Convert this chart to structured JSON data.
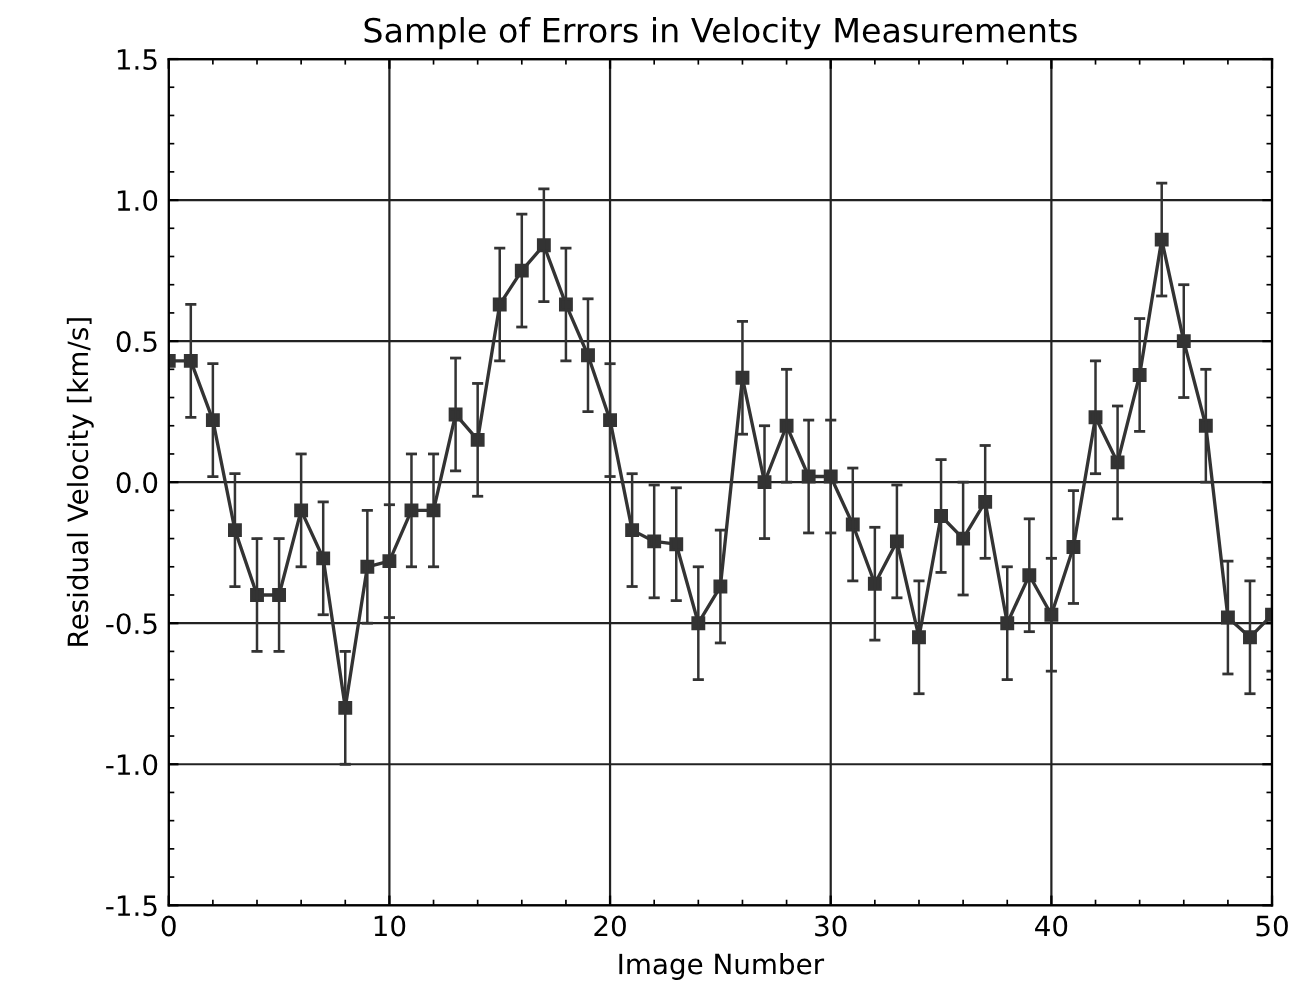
{
  "chart_data": {
    "type": "line",
    "title": "Sample of Errors in Velocity Measurements",
    "xlabel": "Image Number",
    "ylabel": "Residual Velocity [km/s]",
    "x": [
      0,
      1,
      2,
      3,
      4,
      5,
      6,
      7,
      8,
      9,
      10,
      11,
      12,
      13,
      14,
      15,
      16,
      17,
      18,
      19,
      20,
      21,
      22,
      23,
      24,
      25,
      26,
      27,
      28,
      29,
      30,
      31,
      32,
      33,
      34,
      35,
      36,
      37,
      38,
      39,
      40,
      41,
      42,
      43,
      44,
      45,
      46,
      47,
      48,
      49,
      50
    ],
    "series": [
      {
        "color": "#333333",
        "values": [
          0.43,
          0.43,
          0.22,
          -0.17,
          -0.4,
          -0.4,
          -0.1,
          -0.27,
          -0.8,
          -0.3,
          -0.28,
          -0.1,
          -0.1,
          0.24,
          0.15,
          0.63,
          0.75,
          0.84,
          0.63,
          0.45,
          0.22,
          -0.17,
          -0.21,
          -0.22,
          -0.5,
          -0.37,
          0.37,
          0.0,
          0.2,
          0.02,
          0.02,
          -0.15,
          -0.36,
          -0.21,
          -0.55,
          -0.12,
          -0.2,
          -0.07,
          -0.5,
          -0.33,
          -0.47,
          -0.23,
          0.23,
          0.07,
          0.38,
          0.86,
          0.5,
          0.2,
          -0.48,
          -0.55,
          -0.47
        ],
        "errors": [
          null,
          0.2,
          0.2,
          0.2,
          0.2,
          0.2,
          0.2,
          0.2,
          0.2,
          0.2,
          0.2,
          0.2,
          0.2,
          0.2,
          0.2,
          0.2,
          0.2,
          0.2,
          0.2,
          0.2,
          0.2,
          0.2,
          0.2,
          0.2,
          0.2,
          0.2,
          0.2,
          0.2,
          0.2,
          0.2,
          0.2,
          0.2,
          0.2,
          0.2,
          0.2,
          0.2,
          0.2,
          0.2,
          0.2,
          0.2,
          0.2,
          0.2,
          0.2,
          0.2,
          0.2,
          0.2,
          0.2,
          0.2,
          0.2,
          0.2,
          0.2
        ]
      }
    ],
    "xlim": [
      0,
      50
    ],
    "xticks": [
      0,
      10,
      20,
      30,
      40,
      50
    ],
    "ylim": [
      -1.5,
      1.5
    ],
    "yticks": [
      {
        "value": -1.5,
        "label": "-1.5"
      },
      {
        "value": -1.0,
        "label": "-1.0"
      },
      {
        "value": -0.5,
        "label": "-0.5"
      },
      {
        "value": 0.0,
        "label": "0.0"
      },
      {
        "value": 0.5,
        "label": "0.5"
      },
      {
        "value": 1.0,
        "label": "1.0"
      },
      {
        "value": 1.5,
        "label": "1.5"
      }
    ],
    "grid": true,
    "marker": "square",
    "line_style": "solid"
  }
}
